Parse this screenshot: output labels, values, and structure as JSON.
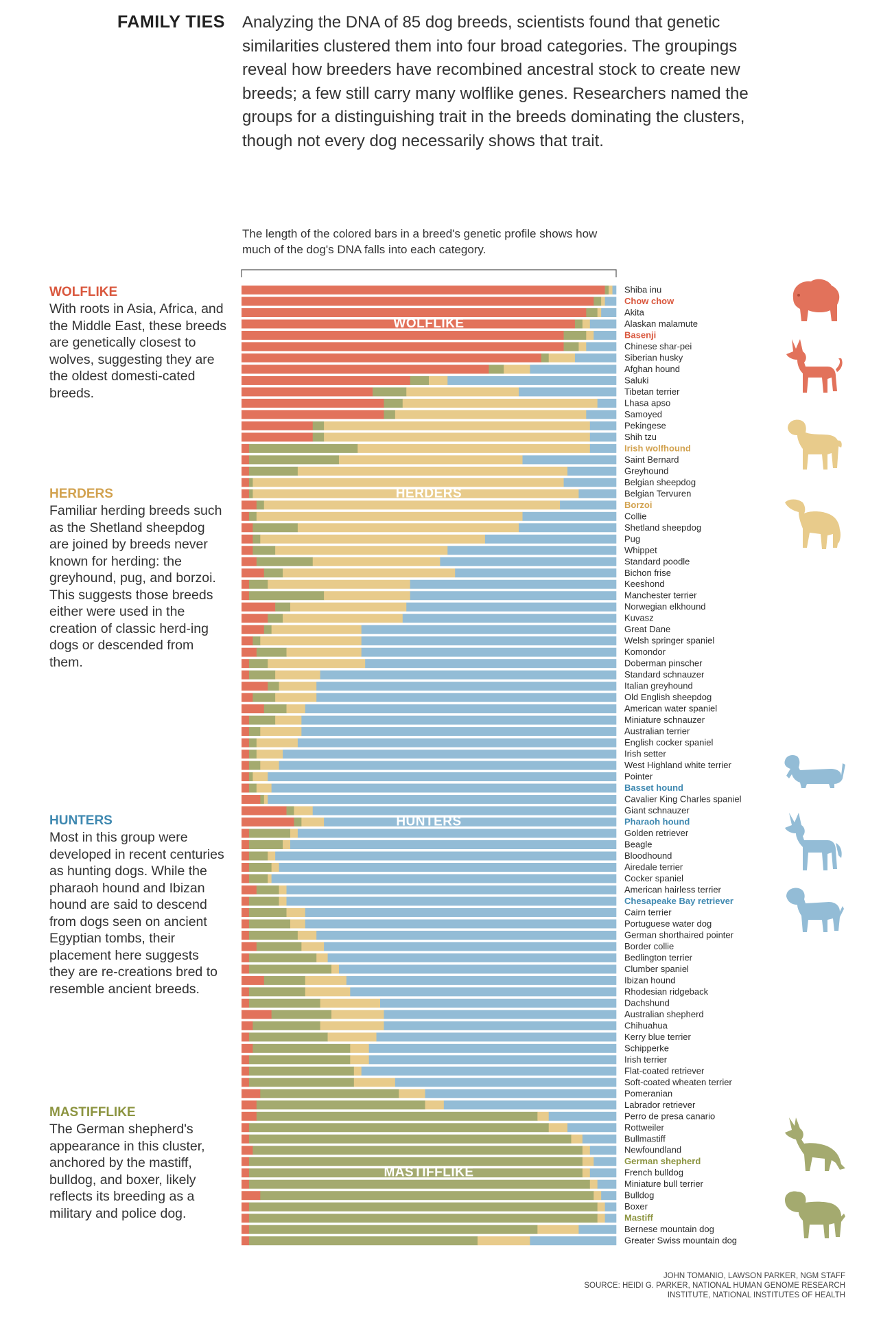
{
  "header": {
    "title": "FAMILY TIES",
    "intro": "Analyzing the DNA of 85 dog breeds, scientists found that genetic similarities clustered them into four broad categories. The groupings reveal how breeders have recombined ancestral stock to create new breeds; a few still carry many wolflike genes. Researchers named the groups for a distinguishing trait in the breeds dominating the clusters, though not every dog necessarily shows that trait."
  },
  "chart_caption": "The length of the colored bars in a breed's genetic profile shows how much of the dog's DNA falls into each category.",
  "sidebar": {
    "wolflike": {
      "title": "WOLFLIKE",
      "text": "With roots in Asia, Africa, and the Middle East, these breeds are genetically closest to wolves, suggesting they are the oldest domesti-cated breeds."
    },
    "herders": {
      "title": "HERDERS",
      "text": "Familiar herding breeds such as the Shetland sheepdog are joined by breeds never known for herding: the greyhound, pug, and borzoi. This suggests those breeds either were used in the creation of classic herd-ing dogs or descended from them."
    },
    "hunters": {
      "title": "HUNTERS",
      "text": "Most in this group were developed in recent centuries as hunting dogs. While the pharaoh hound and Ibizan hound are said to descend from dogs seen on ancient Egyptian tombs, their placement here suggests they are re-creations bred to resemble ancient breeds."
    },
    "mastifflike": {
      "title": "MASTIFFLIKE",
      "text": "The German shepherd's appearance in this cluster, anchored by the mastiff, bulldog, and boxer, likely reflects its breeding as a military and police dog."
    }
  },
  "colors": {
    "wolflike": "#e2725b",
    "herders": "#e8cb8b",
    "hunters": "#93bcd6",
    "mastifflike": "#a4aa6f",
    "wolflike_text": "#d9573d",
    "herders_text": "#d2a24f",
    "hunters_text": "#3e88b0",
    "mastifflike_text": "#8c9440"
  },
  "chart_data": {
    "type": "bar",
    "orientation": "horizontal",
    "stacked": true,
    "normalized": true,
    "series": [
      {
        "name": "WOLFLIKE",
        "key": "wolflike"
      },
      {
        "name": "MASTIFFLIKE",
        "key": "mastifflike"
      },
      {
        "name": "HERDERS",
        "key": "herders"
      },
      {
        "name": "HUNTERS",
        "key": "hunters"
      }
    ],
    "band_labels": [
      {
        "text": "WOLFLIKE",
        "row": 3
      },
      {
        "text": "HERDERS",
        "row": 18
      },
      {
        "text": "HUNTERS",
        "row": 47
      },
      {
        "text": "MASTIFFLIKE",
        "row": 78
      }
    ],
    "highlighted": [
      {
        "breed": "Chow chow",
        "group": "wolflike"
      },
      {
        "breed": "Basenji",
        "group": "wolflike"
      },
      {
        "breed": "Irish wolfhound",
        "group": "herders"
      },
      {
        "breed": "Borzoi",
        "group": "herders"
      },
      {
        "breed": "Basset hound",
        "group": "hunters"
      },
      {
        "breed": "Pharaoh hound",
        "group": "hunters"
      },
      {
        "breed": "Chesapeake Bay retriever",
        "group": "hunters"
      },
      {
        "breed": "German shepherd",
        "group": "mastifflike"
      },
      {
        "breed": "Mastiff",
        "group": "mastifflike"
      }
    ],
    "breeds": [
      {
        "name": "Shiba inu",
        "wolflike": 0.97,
        "mastifflike": 0.01,
        "herders": 0.01,
        "hunters": 0.01
      },
      {
        "name": "Chow chow",
        "wolflike": 0.94,
        "mastifflike": 0.02,
        "herders": 0.01,
        "hunters": 0.03
      },
      {
        "name": "Akita",
        "wolflike": 0.92,
        "mastifflike": 0.03,
        "herders": 0.01,
        "hunters": 0.04
      },
      {
        "name": "Alaskan malamute",
        "wolflike": 0.89,
        "mastifflike": 0.02,
        "herders": 0.02,
        "hunters": 0.07
      },
      {
        "name": "Basenji",
        "wolflike": 0.86,
        "mastifflike": 0.06,
        "herders": 0.02,
        "hunters": 0.06
      },
      {
        "name": "Chinese shar-pei",
        "wolflike": 0.86,
        "mastifflike": 0.04,
        "herders": 0.02,
        "hunters": 0.08
      },
      {
        "name": "Siberian husky",
        "wolflike": 0.8,
        "mastifflike": 0.02,
        "herders": 0.07,
        "hunters": 0.11
      },
      {
        "name": "Afghan hound",
        "wolflike": 0.66,
        "mastifflike": 0.04,
        "herders": 0.07,
        "hunters": 0.23
      },
      {
        "name": "Saluki",
        "wolflike": 0.45,
        "mastifflike": 0.05,
        "herders": 0.05,
        "hunters": 0.45
      },
      {
        "name": "Tibetan terrier",
        "wolflike": 0.35,
        "mastifflike": 0.09,
        "herders": 0.3,
        "hunters": 0.26
      },
      {
        "name": "Lhasa apso",
        "wolflike": 0.38,
        "mastifflike": 0.05,
        "herders": 0.52,
        "hunters": 0.05
      },
      {
        "name": "Samoyed",
        "wolflike": 0.38,
        "mastifflike": 0.03,
        "herders": 0.51,
        "hunters": 0.08
      },
      {
        "name": "Pekingese",
        "wolflike": 0.19,
        "mastifflike": 0.03,
        "herders": 0.71,
        "hunters": 0.07
      },
      {
        "name": "Shih tzu",
        "wolflike": 0.19,
        "mastifflike": 0.03,
        "herders": 0.71,
        "hunters": 0.07
      },
      {
        "name": "Irish wolfhound",
        "wolflike": 0.02,
        "mastifflike": 0.29,
        "herders": 0.62,
        "hunters": 0.07
      },
      {
        "name": "Saint Bernard",
        "wolflike": 0.02,
        "mastifflike": 0.24,
        "herders": 0.49,
        "hunters": 0.25
      },
      {
        "name": "Greyhound",
        "wolflike": 0.02,
        "mastifflike": 0.13,
        "herders": 0.72,
        "hunters": 0.13
      },
      {
        "name": "Belgian sheepdog",
        "wolflike": 0.02,
        "mastifflike": 0.01,
        "herders": 0.83,
        "hunters": 0.14
      },
      {
        "name": "Belgian Tervuren",
        "wolflike": 0.02,
        "mastifflike": 0.01,
        "herders": 0.87,
        "hunters": 0.1
      },
      {
        "name": "Borzoi",
        "wolflike": 0.04,
        "mastifflike": 0.02,
        "herders": 0.79,
        "hunters": 0.15
      },
      {
        "name": "Collie",
        "wolflike": 0.02,
        "mastifflike": 0.02,
        "herders": 0.71,
        "hunters": 0.25
      },
      {
        "name": "Shetland sheepdog",
        "wolflike": 0.03,
        "mastifflike": 0.12,
        "herders": 0.59,
        "hunters": 0.26
      },
      {
        "name": "Pug",
        "wolflike": 0.03,
        "mastifflike": 0.02,
        "herders": 0.6,
        "hunters": 0.35
      },
      {
        "name": "Whippet",
        "wolflike": 0.03,
        "mastifflike": 0.06,
        "herders": 0.46,
        "hunters": 0.45
      },
      {
        "name": "Standard poodle",
        "wolflike": 0.04,
        "mastifflike": 0.15,
        "herders": 0.34,
        "hunters": 0.47
      },
      {
        "name": "Bichon frise",
        "wolflike": 0.06,
        "mastifflike": 0.05,
        "herders": 0.46,
        "hunters": 0.43
      },
      {
        "name": "Keeshond",
        "wolflike": 0.02,
        "mastifflike": 0.05,
        "herders": 0.38,
        "hunters": 0.55
      },
      {
        "name": "Manchester terrier",
        "wolflike": 0.02,
        "mastifflike": 0.2,
        "herders": 0.23,
        "hunters": 0.55
      },
      {
        "name": "Norwegian elkhound",
        "wolflike": 0.09,
        "mastifflike": 0.04,
        "herders": 0.31,
        "hunters": 0.56
      },
      {
        "name": "Kuvasz",
        "wolflike": 0.07,
        "mastifflike": 0.04,
        "herders": 0.32,
        "hunters": 0.57
      },
      {
        "name": "Great Dane",
        "wolflike": 0.06,
        "mastifflike": 0.02,
        "herders": 0.24,
        "hunters": 0.68
      },
      {
        "name": "Welsh springer spaniel",
        "wolflike": 0.03,
        "mastifflike": 0.02,
        "herders": 0.27,
        "hunters": 0.68
      },
      {
        "name": "Komondor",
        "wolflike": 0.04,
        "mastifflike": 0.08,
        "herders": 0.2,
        "hunters": 0.68
      },
      {
        "name": "Doberman pinscher",
        "wolflike": 0.02,
        "mastifflike": 0.05,
        "herders": 0.26,
        "hunters": 0.67
      },
      {
        "name": "Standard schnauzer",
        "wolflike": 0.02,
        "mastifflike": 0.07,
        "herders": 0.12,
        "hunters": 0.79
      },
      {
        "name": "Italian greyhound",
        "wolflike": 0.07,
        "mastifflike": 0.03,
        "herders": 0.1,
        "hunters": 0.8
      },
      {
        "name": "Old English sheepdog",
        "wolflike": 0.03,
        "mastifflike": 0.06,
        "herders": 0.11,
        "hunters": 0.8
      },
      {
        "name": "American water spaniel",
        "wolflike": 0.06,
        "mastifflike": 0.06,
        "herders": 0.05,
        "hunters": 0.83
      },
      {
        "name": "Miniature schnauzer",
        "wolflike": 0.02,
        "mastifflike": 0.07,
        "herders": 0.07,
        "hunters": 0.84
      },
      {
        "name": "Australian terrier",
        "wolflike": 0.02,
        "mastifflike": 0.03,
        "herders": 0.11,
        "hunters": 0.84
      },
      {
        "name": "English cocker spaniel",
        "wolflike": 0.02,
        "mastifflike": 0.02,
        "herders": 0.11,
        "hunters": 0.85
      },
      {
        "name": "Irish setter",
        "wolflike": 0.02,
        "mastifflike": 0.02,
        "herders": 0.07,
        "hunters": 0.89
      },
      {
        "name": "West Highland white terrier",
        "wolflike": 0.02,
        "mastifflike": 0.03,
        "herders": 0.05,
        "hunters": 0.9
      },
      {
        "name": "Pointer",
        "wolflike": 0.02,
        "mastifflike": 0.01,
        "herders": 0.04,
        "hunters": 0.93
      },
      {
        "name": "Basset hound",
        "wolflike": 0.02,
        "mastifflike": 0.02,
        "herders": 0.04,
        "hunters": 0.92
      },
      {
        "name": "Cavalier King Charles spaniel",
        "wolflike": 0.05,
        "mastifflike": 0.01,
        "herders": 0.01,
        "hunters": 0.93
      },
      {
        "name": "Giant schnauzer",
        "wolflike": 0.12,
        "mastifflike": 0.02,
        "herders": 0.05,
        "hunters": 0.81
      },
      {
        "name": "Pharaoh hound",
        "wolflike": 0.14,
        "mastifflike": 0.02,
        "herders": 0.06,
        "hunters": 0.78
      },
      {
        "name": "Golden retriever",
        "wolflike": 0.02,
        "mastifflike": 0.11,
        "herders": 0.02,
        "hunters": 0.85
      },
      {
        "name": "Beagle",
        "wolflike": 0.02,
        "mastifflike": 0.09,
        "herders": 0.02,
        "hunters": 0.87
      },
      {
        "name": "Bloodhound",
        "wolflike": 0.02,
        "mastifflike": 0.05,
        "herders": 0.02,
        "hunters": 0.91
      },
      {
        "name": "Airedale terrier",
        "wolflike": 0.02,
        "mastifflike": 0.06,
        "herders": 0.02,
        "hunters": 0.9
      },
      {
        "name": "Cocker spaniel",
        "wolflike": 0.02,
        "mastifflike": 0.05,
        "herders": 0.01,
        "hunters": 0.92
      },
      {
        "name": "American hairless terrier",
        "wolflike": 0.04,
        "mastifflike": 0.06,
        "herders": 0.02,
        "hunters": 0.88
      },
      {
        "name": "Chesapeake Bay retriever",
        "wolflike": 0.02,
        "mastifflike": 0.08,
        "herders": 0.02,
        "hunters": 0.88
      },
      {
        "name": "Cairn terrier",
        "wolflike": 0.02,
        "mastifflike": 0.1,
        "herders": 0.05,
        "hunters": 0.83
      },
      {
        "name": "Portuguese water dog",
        "wolflike": 0.02,
        "mastifflike": 0.11,
        "herders": 0.04,
        "hunters": 0.83
      },
      {
        "name": "German shorthaired pointer",
        "wolflike": 0.02,
        "mastifflike": 0.13,
        "herders": 0.05,
        "hunters": 0.8
      },
      {
        "name": "Border collie",
        "wolflike": 0.04,
        "mastifflike": 0.12,
        "herders": 0.06,
        "hunters": 0.78
      },
      {
        "name": "Bedlington terrier",
        "wolflike": 0.02,
        "mastifflike": 0.18,
        "herders": 0.03,
        "hunters": 0.77
      },
      {
        "name": "Clumber spaniel",
        "wolflike": 0.02,
        "mastifflike": 0.22,
        "herders": 0.02,
        "hunters": 0.74
      },
      {
        "name": "Ibizan hound",
        "wolflike": 0.06,
        "mastifflike": 0.11,
        "herders": 0.11,
        "hunters": 0.72
      },
      {
        "name": "Rhodesian ridgeback",
        "wolflike": 0.02,
        "mastifflike": 0.15,
        "herders": 0.12,
        "hunters": 0.71
      },
      {
        "name": "Dachshund",
        "wolflike": 0.02,
        "mastifflike": 0.19,
        "herders": 0.16,
        "hunters": 0.63
      },
      {
        "name": "Australian shepherd",
        "wolflike": 0.08,
        "mastifflike": 0.16,
        "herders": 0.14,
        "hunters": 0.62
      },
      {
        "name": "Chihuahua",
        "wolflike": 0.03,
        "mastifflike": 0.18,
        "herders": 0.17,
        "hunters": 0.62
      },
      {
        "name": "Kerry blue terrier",
        "wolflike": 0.02,
        "mastifflike": 0.21,
        "herders": 0.13,
        "hunters": 0.64
      },
      {
        "name": "Schipperke",
        "wolflike": 0.03,
        "mastifflike": 0.26,
        "herders": 0.05,
        "hunters": 0.66
      },
      {
        "name": "Irish terrier",
        "wolflike": 0.02,
        "mastifflike": 0.27,
        "herders": 0.05,
        "hunters": 0.66
      },
      {
        "name": "Flat-coated retriever",
        "wolflike": 0.02,
        "mastifflike": 0.28,
        "herders": 0.02,
        "hunters": 0.68
      },
      {
        "name": "Soft-coated wheaten terrier",
        "wolflike": 0.02,
        "mastifflike": 0.28,
        "herders": 0.11,
        "hunters": 0.59
      },
      {
        "name": "Pomeranian",
        "wolflike": 0.05,
        "mastifflike": 0.37,
        "herders": 0.07,
        "hunters": 0.51
      },
      {
        "name": "Labrador retriever",
        "wolflike": 0.04,
        "mastifflike": 0.45,
        "herders": 0.05,
        "hunters": 0.46
      },
      {
        "name": "Perro de presa canario",
        "wolflike": 0.04,
        "mastifflike": 0.75,
        "herders": 0.03,
        "hunters": 0.18
      },
      {
        "name": "Rottweiler",
        "wolflike": 0.02,
        "mastifflike": 0.8,
        "herders": 0.05,
        "hunters": 0.13
      },
      {
        "name": "Bullmastiff",
        "wolflike": 0.02,
        "mastifflike": 0.86,
        "herders": 0.03,
        "hunters": 0.09
      },
      {
        "name": "Newfoundland",
        "wolflike": 0.03,
        "mastifflike": 0.88,
        "herders": 0.02,
        "hunters": 0.07
      },
      {
        "name": "German shepherd",
        "wolflike": 0.02,
        "mastifflike": 0.89,
        "herders": 0.03,
        "hunters": 0.06
      },
      {
        "name": "French bulldog",
        "wolflike": 0.02,
        "mastifflike": 0.89,
        "herders": 0.02,
        "hunters": 0.07
      },
      {
        "name": "Miniature bull terrier",
        "wolflike": 0.02,
        "mastifflike": 0.91,
        "herders": 0.02,
        "hunters": 0.05
      },
      {
        "name": "Bulldog",
        "wolflike": 0.05,
        "mastifflike": 0.89,
        "herders": 0.02,
        "hunters": 0.04
      },
      {
        "name": "Boxer",
        "wolflike": 0.02,
        "mastifflike": 0.93,
        "herders": 0.02,
        "hunters": 0.03
      },
      {
        "name": "Mastiff",
        "wolflike": 0.02,
        "mastifflike": 0.93,
        "herders": 0.02,
        "hunters": 0.03
      },
      {
        "name": "Bernese mountain dog",
        "wolflike": 0.02,
        "mastifflike": 0.77,
        "herders": 0.11,
        "hunters": 0.1
      },
      {
        "name": "Greater Swiss mountain dog",
        "wolflike": 0.02,
        "mastifflike": 0.61,
        "herders": 0.14,
        "hunters": 0.23
      }
    ]
  },
  "credit": {
    "line1": "JOHN TOMANIO, LAWSON PARKER, NGM STAFF",
    "line2": "SOURCE: HEIDI G. PARKER, NATIONAL HUMAN GENOME RESEARCH",
    "line3": "INSTITUTE, NATIONAL INSTITUTES OF HEALTH"
  },
  "icons": [
    {
      "name": "chow-chow-icon",
      "group": "wolflike"
    },
    {
      "name": "basenji-icon",
      "group": "wolflike"
    },
    {
      "name": "irish-wolfhound-icon",
      "group": "herders"
    },
    {
      "name": "borzoi-icon",
      "group": "herders"
    },
    {
      "name": "basset-hound-icon",
      "group": "hunters"
    },
    {
      "name": "pharaoh-hound-icon",
      "group": "hunters"
    },
    {
      "name": "chesapeake-bay-retriever-icon",
      "group": "hunters"
    },
    {
      "name": "german-shepherd-icon",
      "group": "mastifflike"
    },
    {
      "name": "mastiff-icon",
      "group": "mastifflike"
    }
  ]
}
